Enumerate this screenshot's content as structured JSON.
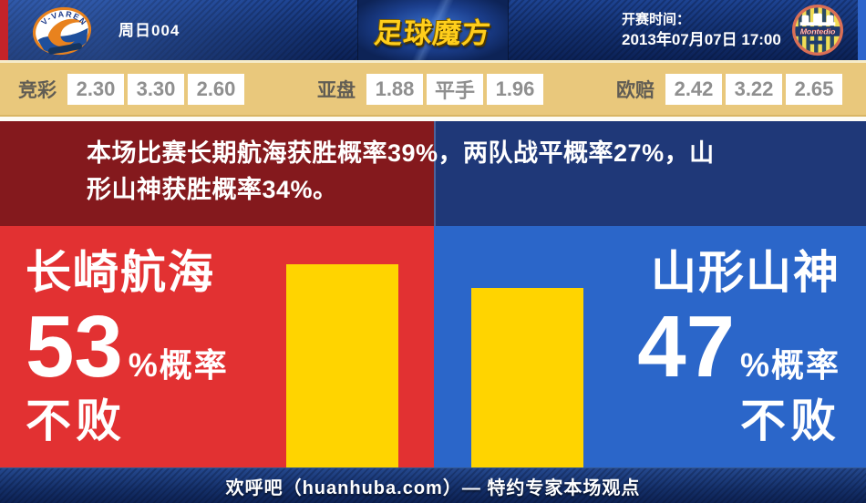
{
  "header": {
    "match_label": "周日004",
    "brand": "足球魔方",
    "kickoff_label": "开赛时间：",
    "kickoff_time": "2013年07月07日 17:00",
    "home_crest_text": "V-VAREN",
    "away_crest_text": "Montedio"
  },
  "odds": {
    "groups": [
      {
        "label": "竞彩",
        "values": [
          "2.30",
          "3.30",
          "2.60"
        ]
      },
      {
        "label": "亚盘",
        "values": [
          "1.88",
          "平手",
          "1.96"
        ]
      },
      {
        "label": "欧赔",
        "values": [
          "2.42",
          "3.22",
          "2.65"
        ]
      }
    ]
  },
  "summary": {
    "full_text": "本场比赛长期航海获胜概率39%，两队战平概率27%，山形山神获胜概率34%。",
    "line1": "本场比赛长期航海获胜概率39%，两队战平概率27%，山",
    "line2": "形山神获胜概率34%。"
  },
  "panels": {
    "home": {
      "team": "长崎航海",
      "percent": "53",
      "percent_sign": "%",
      "probability_label": "概率",
      "result": "不败",
      "percent_value": 53
    },
    "away": {
      "team": "山形山神",
      "percent": "47",
      "percent_sign": "%",
      "probability_label": "概率",
      "result": "不败",
      "percent_value": 47
    }
  },
  "footer": {
    "text": "欢呼吧（huanhuba.com）— 特约专家本场观点"
  },
  "colors": {
    "home_red": "#e23132",
    "away_blue": "#2b66c9",
    "bar_yellow": "#ffd400",
    "summary_dark_red": "#84191d",
    "summary_dark_blue": "#1f3878",
    "odds_gold": "#e9c87c",
    "brand_gold": "#ffce1b"
  }
}
